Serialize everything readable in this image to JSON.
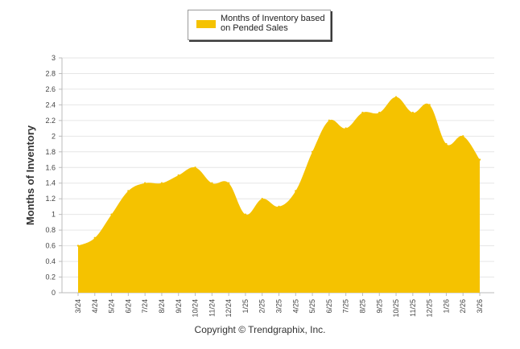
{
  "legend": {
    "label_line1": "Months of Inventory based",
    "label_line2": "on Pended Sales"
  },
  "footer": {
    "copyright": "Copyright © Trendgraphix, Inc."
  },
  "chart_data": {
    "type": "area",
    "title": "",
    "xlabel": "",
    "ylabel": "Months of Inventory",
    "ylim": [
      0,
      3
    ],
    "yticks": [
      0,
      0.2,
      0.4,
      0.6,
      0.8,
      1,
      1.2,
      1.4,
      1.6,
      1.8,
      2,
      2.2,
      2.4,
      2.6,
      2.8,
      3
    ],
    "ytick_labels": [
      "0",
      "0.2",
      "0.4",
      "0.6",
      "0.8",
      "1",
      "1.2",
      "1.4",
      "1.6",
      "1.8",
      "2",
      "2.2",
      "2.4",
      "2.6",
      "2.8",
      "3"
    ],
    "grid": true,
    "legend_position": "top-center",
    "categories": [
      "3/24",
      "4/24",
      "5/24",
      "6/24",
      "7/24",
      "8/24",
      "9/24",
      "10/24",
      "11/24",
      "12/24",
      "1/25",
      "2/25",
      "3/25",
      "4/25",
      "5/25",
      "6/25",
      "7/25",
      "8/25",
      "9/25",
      "10/25",
      "11/25",
      "12/25",
      "1/26",
      "2/26",
      "3/26"
    ],
    "series": [
      {
        "name": "Months of Inventory based on Pended Sales",
        "color": "#f5c200",
        "values": [
          0.6,
          0.7,
          1.0,
          1.3,
          1.4,
          1.4,
          1.5,
          1.6,
          1.4,
          1.4,
          1.0,
          1.2,
          1.1,
          1.3,
          1.8,
          2.2,
          2.1,
          2.3,
          2.3,
          2.5,
          2.3,
          2.4,
          1.9,
          2.0,
          1.7
        ]
      }
    ]
  }
}
